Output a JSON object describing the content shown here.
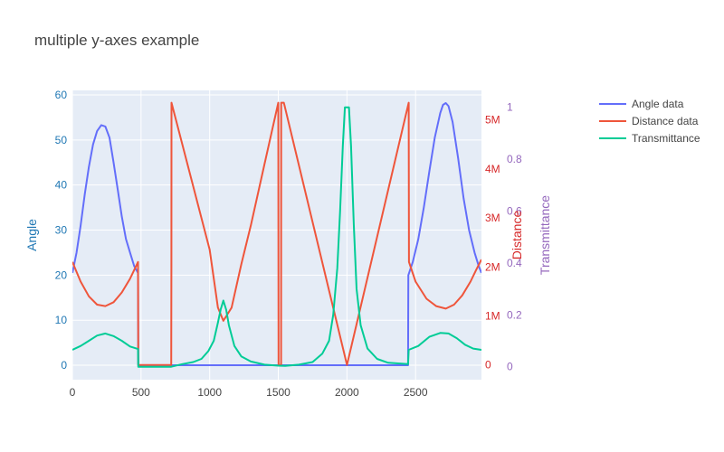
{
  "chart_data": {
    "type": "line",
    "title": "multiple y-axes example",
    "xlim": [
      0,
      2980
    ],
    "x_ticks": [
      0,
      500,
      1000,
      1500,
      2000,
      2500
    ],
    "x_tick_labels": [
      "0",
      "500",
      "1000",
      "1500",
      "2000",
      "2500"
    ],
    "grid": true,
    "legend_position": "top-right",
    "plot_background": "#e5ecf6",
    "axes": {
      "y": {
        "title": "Angle",
        "color": "#1f77b4",
        "range": [
          -3.2,
          61
        ],
        "ticks": [
          0,
          10,
          20,
          30,
          40,
          50,
          60
        ],
        "tick_labels": [
          "0",
          "10",
          "20",
          "30",
          "40",
          "50",
          "60"
        ],
        "side": "left"
      },
      "y2": {
        "title": "Distance",
        "color": "#d62728",
        "range": [
          -300000,
          5600000
        ],
        "ticks": [
          0,
          1000000,
          2000000,
          3000000,
          4000000,
          5000000
        ],
        "tick_labels": [
          "0",
          "1M",
          "2M",
          "3M",
          "4M",
          "5M"
        ],
        "side": "right"
      },
      "y3": {
        "title": "Transmittance",
        "color": "#9467bd",
        "range": [
          -0.05,
          1.065
        ],
        "ticks": [
          0,
          0.2,
          0.4,
          0.6,
          0.8,
          1
        ],
        "tick_labels": [
          "0",
          "0.2",
          "0.4",
          "0.6",
          "0.8",
          "1"
        ],
        "side": "right"
      }
    },
    "series": [
      {
        "name": "Angle data",
        "axis": "y",
        "color": "#636efa",
        "points": [
          [
            0,
            20.5
          ],
          [
            30,
            25
          ],
          [
            60,
            31
          ],
          [
            90,
            38
          ],
          [
            120,
            44
          ],
          [
            150,
            49
          ],
          [
            180,
            52
          ],
          [
            210,
            53.3
          ],
          [
            240,
            53
          ],
          [
            270,
            50.5
          ],
          [
            300,
            45
          ],
          [
            330,
            39
          ],
          [
            360,
            33
          ],
          [
            390,
            28
          ],
          [
            420,
            25
          ],
          [
            450,
            22
          ],
          [
            478,
            20.5
          ],
          [
            480,
            0
          ],
          [
            2445,
            0
          ],
          [
            2447,
            20
          ],
          [
            2480,
            23
          ],
          [
            2520,
            28
          ],
          [
            2560,
            35
          ],
          [
            2600,
            43
          ],
          [
            2640,
            50.5
          ],
          [
            2680,
            56
          ],
          [
            2700,
            57.8
          ],
          [
            2720,
            58.2
          ],
          [
            2740,
            57.5
          ],
          [
            2770,
            54
          ],
          [
            2810,
            46
          ],
          [
            2850,
            37
          ],
          [
            2890,
            30
          ],
          [
            2930,
            25
          ],
          [
            2960,
            22
          ],
          [
            2980,
            20.5
          ]
        ]
      },
      {
        "name": "Distance data",
        "axis": "y2",
        "color": "#ef553b",
        "points": [
          [
            0,
            2100000
          ],
          [
            60,
            1700000
          ],
          [
            120,
            1400000
          ],
          [
            180,
            1230000
          ],
          [
            240,
            1200000
          ],
          [
            300,
            1280000
          ],
          [
            360,
            1480000
          ],
          [
            420,
            1760000
          ],
          [
            478,
            2100000
          ],
          [
            480,
            0
          ],
          [
            720,
            0
          ],
          [
            721,
            2100000
          ],
          [
            722,
            5350000
          ],
          [
            1000,
            2350000
          ],
          [
            1060,
            1170000
          ],
          [
            1100,
            900000
          ],
          [
            1160,
            1170000
          ],
          [
            1230,
            2050000
          ],
          [
            1300,
            2850000
          ],
          [
            1400,
            4100000
          ],
          [
            1500,
            5350000
          ],
          [
            1502,
            0
          ],
          [
            1520,
            0
          ],
          [
            1521,
            5350000
          ],
          [
            1540,
            5350000
          ],
          [
            1545,
            5300000
          ],
          [
            2000,
            0
          ],
          [
            2450,
            5350000
          ],
          [
            2452,
            2100000
          ],
          [
            2500,
            1700000
          ],
          [
            2580,
            1350000
          ],
          [
            2650,
            1200000
          ],
          [
            2720,
            1150000
          ],
          [
            2780,
            1230000
          ],
          [
            2840,
            1420000
          ],
          [
            2900,
            1700000
          ],
          [
            2940,
            1930000
          ],
          [
            2980,
            2150000
          ]
        ]
      },
      {
        "name": "Transmittance",
        "axis": "y3",
        "color": "#00cc96",
        "points": [
          [
            0,
            0.065
          ],
          [
            60,
            0.08
          ],
          [
            120,
            0.1
          ],
          [
            180,
            0.12
          ],
          [
            240,
            0.128
          ],
          [
            300,
            0.118
          ],
          [
            360,
            0.1
          ],
          [
            420,
            0.078
          ],
          [
            478,
            0.068
          ],
          [
            480,
            0
          ],
          [
            720,
            0
          ],
          [
            800,
            0.01
          ],
          [
            880,
            0.018
          ],
          [
            940,
            0.03
          ],
          [
            990,
            0.06
          ],
          [
            1030,
            0.1
          ],
          [
            1060,
            0.17
          ],
          [
            1080,
            0.22
          ],
          [
            1100,
            0.255
          ],
          [
            1120,
            0.22
          ],
          [
            1140,
            0.16
          ],
          [
            1180,
            0.08
          ],
          [
            1230,
            0.04
          ],
          [
            1300,
            0.02
          ],
          [
            1400,
            0.008
          ],
          [
            1500,
            0.004
          ],
          [
            1550,
            0.003
          ],
          [
            1650,
            0.008
          ],
          [
            1750,
            0.018
          ],
          [
            1820,
            0.05
          ],
          [
            1870,
            0.1
          ],
          [
            1900,
            0.2
          ],
          [
            1930,
            0.38
          ],
          [
            1950,
            0.6
          ],
          [
            1970,
            0.85
          ],
          [
            1985,
            1.0
          ],
          [
            2015,
            1.0
          ],
          [
            2030,
            0.85
          ],
          [
            2050,
            0.55
          ],
          [
            2070,
            0.3
          ],
          [
            2100,
            0.16
          ],
          [
            2150,
            0.07
          ],
          [
            2220,
            0.03
          ],
          [
            2300,
            0.015
          ],
          [
            2445,
            0.01
          ],
          [
            2450,
            0.065
          ],
          [
            2520,
            0.08
          ],
          [
            2600,
            0.115
          ],
          [
            2680,
            0.13
          ],
          [
            2740,
            0.128
          ],
          [
            2800,
            0.11
          ],
          [
            2860,
            0.085
          ],
          [
            2920,
            0.07
          ],
          [
            2980,
            0.065
          ]
        ]
      }
    ]
  }
}
